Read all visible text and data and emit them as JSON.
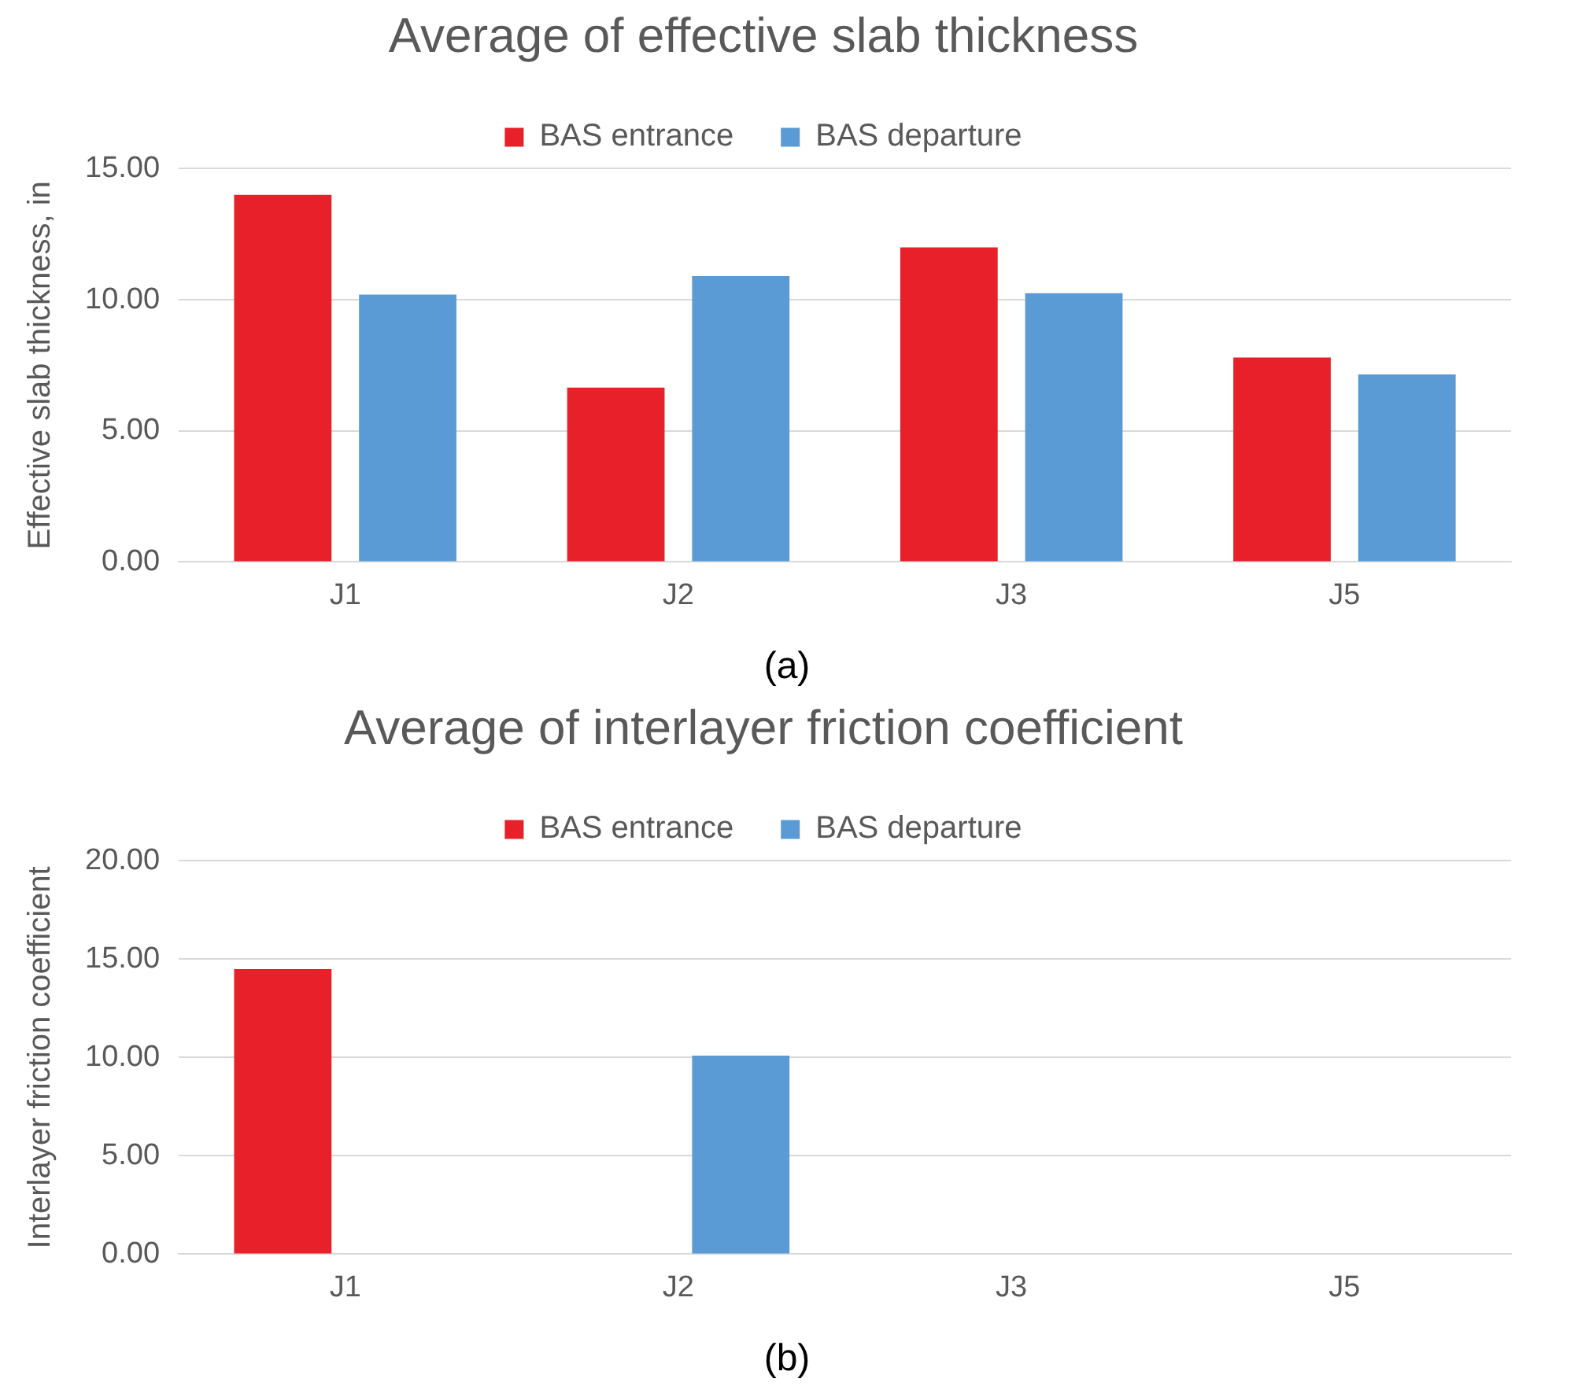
{
  "chart_data": [
    {
      "type": "bar",
      "title": "Average of effective slab thickness",
      "ylabel": "Effective slab thickness, in",
      "categories": [
        "J1",
        "J2",
        "J3",
        "J5"
      ],
      "series": [
        {
          "name": "BAS entrance",
          "color": "#e8202a",
          "values": [
            14.0,
            6.65,
            12.0,
            7.8
          ]
        },
        {
          "name": "BAS departure",
          "color": "#5b9bd5",
          "values": [
            10.2,
            10.9,
            10.25,
            7.15
          ]
        }
      ],
      "ylim": [
        0,
        15
      ],
      "yticks": [
        {
          "value": 0,
          "label": "0.00"
        },
        {
          "value": 5,
          "label": "5.00"
        },
        {
          "value": 10,
          "label": "10.00"
        },
        {
          "value": 15,
          "label": "15.00"
        }
      ],
      "grid": "y",
      "legend": "top",
      "annotations": [
        "(a)"
      ]
    },
    {
      "type": "bar",
      "title": "Average of interlayer friction coefficient",
      "ylabel": "Interlayer friction coefficient",
      "categories": [
        "J1",
        "J2",
        "J3",
        "J5"
      ],
      "series": [
        {
          "name": "BAS entrance",
          "color": "#e8202a",
          "values": [
            14.5,
            null,
            null,
            null
          ]
        },
        {
          "name": "BAS departure",
          "color": "#5b9bd5",
          "values": [
            null,
            10.1,
            null,
            null
          ]
        }
      ],
      "ylim": [
        0,
        20
      ],
      "yticks": [
        {
          "value": 0,
          "label": "0.00"
        },
        {
          "value": 5,
          "label": "5.00"
        },
        {
          "value": 10,
          "label": "10.00"
        },
        {
          "value": 15,
          "label": "15.00"
        },
        {
          "value": 20,
          "label": "20.00"
        }
      ],
      "grid": "y",
      "legend": "top",
      "annotations": [
        "(b)"
      ]
    }
  ]
}
